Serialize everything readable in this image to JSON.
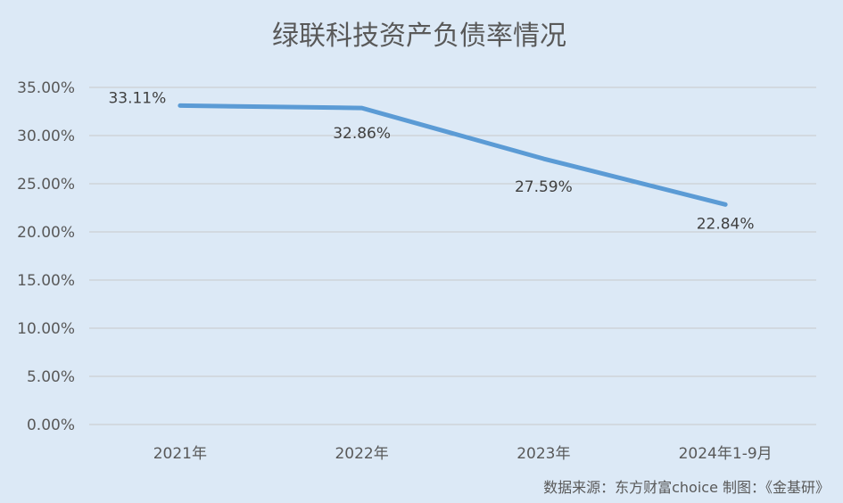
{
  "chart_data": {
    "type": "line",
    "title": "绿联科技资产负债率情况",
    "categories": [
      "2021年",
      "2022年",
      "2023年",
      "2024年1-9月"
    ],
    "series": [
      {
        "values": [
          33.11,
          32.86,
          27.59,
          22.84
        ],
        "labels": [
          "33.11%",
          "32.86%",
          "27.59%",
          "22.84%"
        ],
        "color": "#5b9bd5"
      }
    ],
    "ylim": [
      0,
      35
    ],
    "yticks": [
      "0.00%",
      "5.00%",
      "10.00%",
      "15.00%",
      "20.00%",
      "25.00%",
      "30.00%",
      "35.00%"
    ],
    "xlabel": "",
    "ylabel": "",
    "grid": true,
    "legend": "none"
  },
  "source_note": "数据来源：东方财富choice   制图：《金基研》"
}
